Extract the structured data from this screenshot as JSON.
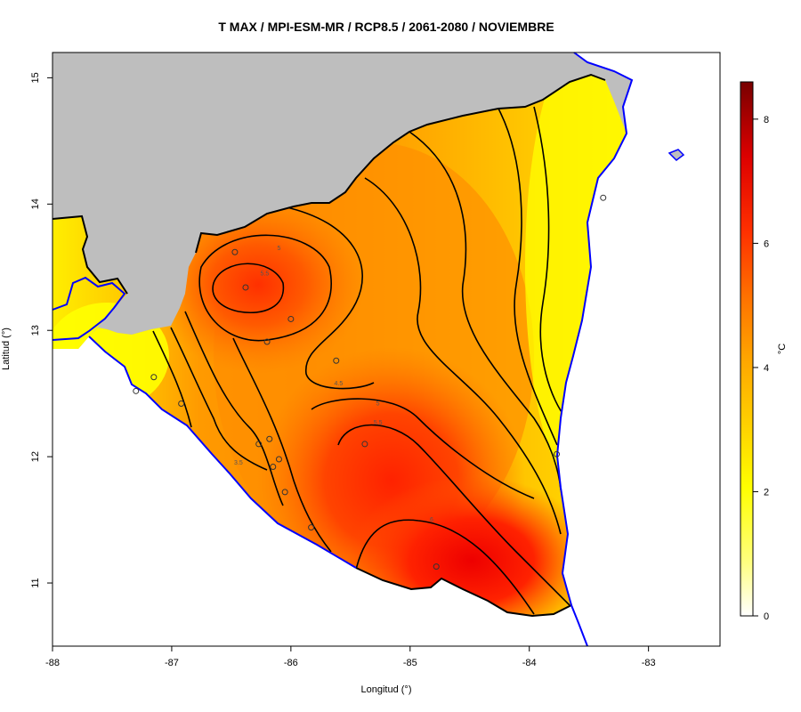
{
  "title": "T MAX / MPI-ESM-MR / RCP8.5 / 2061-2080 / NOVIEMBRE",
  "axes": {
    "x_label": "Longitud (°)",
    "y_label": "Latitud (°)",
    "x_range": [
      -88.0,
      -82.4
    ],
    "y_range": [
      10.5,
      15.2
    ],
    "x_ticks": [
      {
        "value": -88,
        "label": "-88"
      },
      {
        "value": -87,
        "label": "-87"
      },
      {
        "value": -86,
        "label": "-86"
      },
      {
        "value": -85,
        "label": "-85"
      },
      {
        "value": -84,
        "label": "-84"
      },
      {
        "value": -83,
        "label": "-83"
      }
    ],
    "y_ticks": [
      {
        "value": 15,
        "label": "15"
      },
      {
        "value": 14,
        "label": "14"
      },
      {
        "value": 13,
        "label": "13"
      },
      {
        "value": 12,
        "label": "12"
      },
      {
        "value": 11,
        "label": "11"
      }
    ]
  },
  "colorbar": {
    "unit_label": "°C",
    "range": [
      0,
      8.6
    ],
    "ticks": [
      {
        "value": 0,
        "label": "0"
      },
      {
        "value": 2,
        "label": "2"
      },
      {
        "value": 4,
        "label": "4"
      },
      {
        "value": 6,
        "label": "6"
      },
      {
        "value": 8,
        "label": "8"
      }
    ]
  },
  "contour_labels": [
    {
      "text": "5",
      "lon": -86.1,
      "lat": 13.65
    },
    {
      "text": "5.5",
      "lon": -86.22,
      "lat": 13.45
    },
    {
      "text": "4.5",
      "lon": -85.6,
      "lat": 12.58
    },
    {
      "text": "5",
      "lon": -85.27,
      "lat": 12.42
    },
    {
      "text": "5.5",
      "lon": -85.27,
      "lat": 12.27
    },
    {
      "text": "3.5",
      "lon": -86.44,
      "lat": 11.95
    },
    {
      "text": "6",
      "lon": -84.82,
      "lat": 11.5
    }
  ],
  "stations": [
    {
      "lon": -86.47,
      "lat": 13.62
    },
    {
      "lon": -86.38,
      "lat": 13.34
    },
    {
      "lon": -86.0,
      "lat": 13.09
    },
    {
      "lon": -86.2,
      "lat": 12.91
    },
    {
      "lon": -85.62,
      "lat": 12.76
    },
    {
      "lon": -87.15,
      "lat": 12.63
    },
    {
      "lon": -87.3,
      "lat": 12.52
    },
    {
      "lon": -86.92,
      "lat": 12.42
    },
    {
      "lon": -86.18,
      "lat": 12.14
    },
    {
      "lon": -86.27,
      "lat": 12.1
    },
    {
      "lon": -85.38,
      "lat": 12.1
    },
    {
      "lon": -86.1,
      "lat": 11.98
    },
    {
      "lon": -86.15,
      "lat": 11.92
    },
    {
      "lon": -86.05,
      "lat": 11.72
    },
    {
      "lon": -85.83,
      "lat": 11.44
    },
    {
      "lon": -84.78,
      "lat": 11.13
    },
    {
      "lon": -83.77,
      "lat": 12.02
    },
    {
      "lon": -83.38,
      "lat": 14.05
    }
  ],
  "colors": {
    "background": "#bebebe",
    "coast": "#0000ff",
    "border": "#000000",
    "contour": "#000000",
    "scale": [
      "#ffffff",
      "#ffff33",
      "#ffdd00",
      "#ffaa00",
      "#ff7700",
      "#ff3300",
      "#dd0000",
      "#7a0000"
    ]
  }
}
